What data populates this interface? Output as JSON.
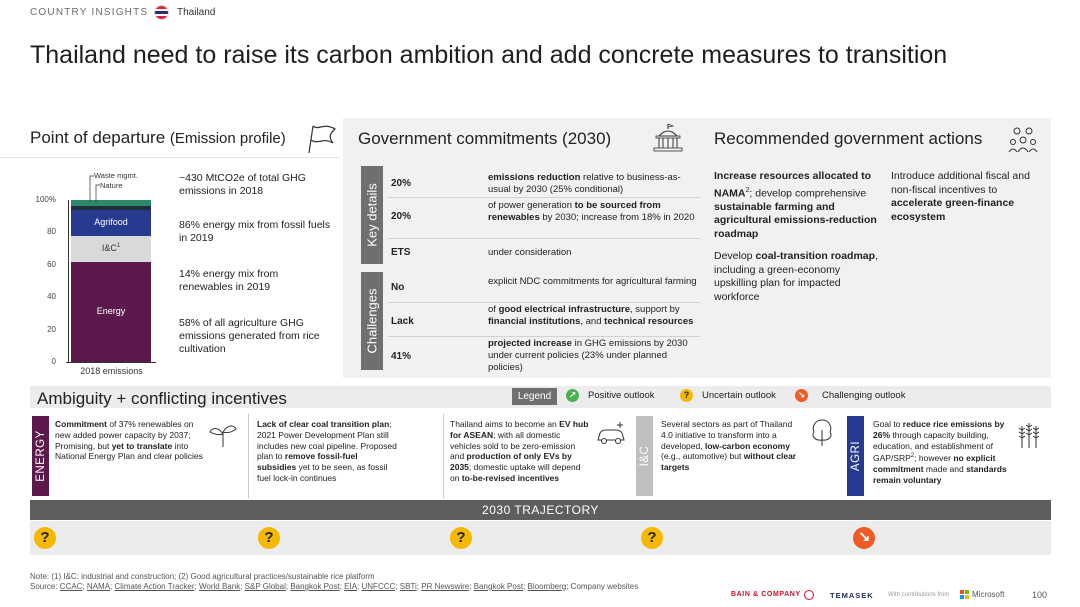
{
  "header": {
    "section": "COUNTRY INSIGHTS",
    "country": "Thailand",
    "title": "Thailand need to raise its carbon ambition and add concrete measures to transition"
  },
  "departure": {
    "title": "Point of departure",
    "subtitle": "(Emission profile)",
    "chart_data": {
      "type": "bar",
      "categories": [
        "2018 emissions"
      ],
      "series": [
        {
          "name": "Energy",
          "values": [
            62
          ],
          "color": "#5b1a4b"
        },
        {
          "name": "I&C",
          "values": [
            16
          ],
          "color": "#d9d9d9"
        },
        {
          "name": "Agrifood",
          "values": [
            16
          ],
          "color": "#263a8f"
        },
        {
          "name": "Nature",
          "values": [
            2
          ],
          "color": "#1f2d3d"
        },
        {
          "name": "Waste mgmt.",
          "values": [
            4
          ],
          "color": "#2c8a6a"
        }
      ],
      "yticks": [
        "0",
        "20",
        "40",
        "60",
        "80",
        "100%"
      ],
      "ylim": [
        0,
        100
      ],
      "segment_labels": [
        "Energy",
        "I&C",
        "Agrifood"
      ],
      "ic_superscript": "1",
      "callouts": [
        "Waste mgmt.",
        "Nature"
      ]
    },
    "stats": [
      "~430 MtCO2e of total GHG emissions in 2018",
      "86% energy mix from fossil fuels in 2019",
      "14% energy mix from renewables in 2019",
      "58% of all agriculture GHG emissions generated from rice cultivation"
    ]
  },
  "government": {
    "title": "Government commitments (2030)",
    "key_label": "Key details",
    "challenge_label": "Challenges",
    "key_rows": [
      {
        "value": "20%",
        "b1": "emissions reduction",
        "t1": " relative to business-as-usual by 2030 (25% conditional)",
        "b2": "",
        "t2": ""
      },
      {
        "value": "20%",
        "b1": "",
        "t1": "of power generation ",
        "b2": "to be sourced from renewables",
        "t2": " by 2030; increase from 18% in 2020"
      },
      {
        "value": "ETS",
        "b1": "",
        "t1": "under consideration",
        "b2": "",
        "t2": ""
      }
    ],
    "challenge_rows": [
      {
        "value": "No",
        "t1": "explicit NDC commitments for agricultural farming"
      },
      {
        "value": "Lack",
        "t1": "of ",
        "b1": "good electrical infrastructure",
        "t2": ", support by ",
        "b2": "financial institutions",
        "t3": ", and ",
        "b3": "technical resources"
      },
      {
        "value": "41%",
        "b1": "projected increase",
        "t1": " in GHG emissions by 2030 under current policies (23% under planned policies)"
      }
    ]
  },
  "recommended": {
    "title": "Recommended government actions",
    "col1_a": {
      "b1": "Increase resources allocated to NAMA",
      "sup": "2",
      "t1": "; develop comprehensive ",
      "b2": "sustainable farming and agricultural emissions-reduction roadmap"
    },
    "col1_b": {
      "t1": "Develop ",
      "b1": "coal-transition roadmap",
      "t2": ", including a green-economy upskilling plan for impacted workforce"
    },
    "col2": {
      "t1": "Introduce additional fiscal and non-fiscal incentives to ",
      "b1": "accelerate green-finance ecosystem"
    }
  },
  "ambiguity": {
    "title": "Ambiguity + conflicting incentives",
    "legend": "Legend",
    "positive": "Positive outlook",
    "uncertain": "Uncertain outlook",
    "challenging": "Challenging outlook",
    "energy_tab": "ENERGY",
    "ic_tab": "I&C",
    "agri_tab": "AGRI",
    "c1": {
      "b1": "Commitment",
      "t1": " of 37% renewables on new added power capacity by 2037; Promising, but ",
      "b2": "yet to translate",
      "t2": " into National Energy Plan and clear policies"
    },
    "c2": {
      "b1": "Lack of clear coal transition plan",
      "t1": "; 2021 Power Development Plan still includes new coal pipeline. Proposed plan to ",
      "b2": "remove fossil-fuel subsidies",
      "t2": " yet to be seen, as fossil fuel lock-in continues"
    },
    "c3": {
      "t1": "Thailand aims to become an ",
      "b1": "EV hub for ASEAN",
      "t2": "; with all domestic vehicles sold to be zero-emission and ",
      "b2": "production of only EVs by 2035",
      "t3": "; domestic uptake will depend on ",
      "b3": "to-be-revised incentives"
    },
    "c4": {
      "t1": "Several sectors as part of Thailand 4.0 initiative to transform into a developed, ",
      "b1": "low-carbon economy",
      "t2": " (e.g., automotive) but ",
      "b2": "without clear targets"
    },
    "c5": {
      "t1": "Goal to ",
      "b1": "reduce rice emissions by 26%",
      "t2": " through capacity building, education, and establishment of GAP/SRP",
      "sup": "2",
      "t3": "; however ",
      "b2": "no explicit commitment",
      "t4": " made and ",
      "b3": "standards remain voluntary"
    }
  },
  "trajectory": {
    "label": "2030  TRAJECTORY",
    "outlooks": [
      "?",
      "?",
      "?",
      "?",
      "↘"
    ]
  },
  "footer": {
    "note": "Note: (1) I&C: industrial and construction; (2) Good agricultural practices/sustainable rice platform",
    "source_prefix": "Source: ",
    "sources": [
      "CCAC",
      "NAMA",
      "Climate Action Tracker",
      "World Bank",
      "S&P Global",
      "Bangkok Post",
      "EIA",
      "UNFCCC",
      "SBTi",
      "PR Newswire",
      "Bangkok Post",
      "Bloomberg"
    ],
    "source_suffix": "; Company websites",
    "bain": "BAIN & COMPANY",
    "temasek": "TEMASEK",
    "with": "With contributions from",
    "microsoft": "Microsoft",
    "page": "100"
  }
}
